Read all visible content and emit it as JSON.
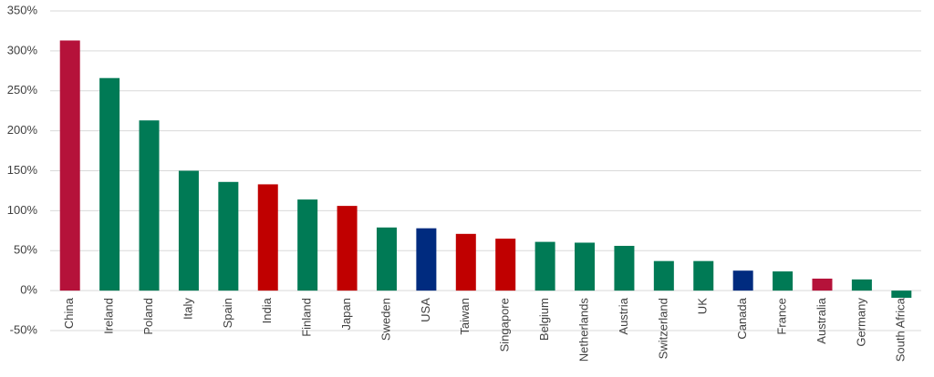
{
  "chart_data": {
    "type": "bar",
    "categories": [
      "China",
      "Ireland",
      "Poland",
      "Italy",
      "Spain",
      "India",
      "Finland",
      "Japan",
      "Sweden",
      "USA",
      "Taiwan",
      "Singapore",
      "Belgium",
      "Netherlands",
      "Austria",
      "Switzerland",
      "UK",
      "Canada",
      "France",
      "Australia",
      "Germany",
      "South Africa"
    ],
    "values": [
      313,
      266,
      213,
      150,
      136,
      133,
      114,
      106,
      79,
      78,
      71,
      65,
      61,
      60,
      56,
      37,
      37,
      25,
      24,
      15,
      14,
      -9
    ],
    "colors": [
      "#b5123a",
      "#007a55",
      "#007a55",
      "#007a55",
      "#007a55",
      "#c00000",
      "#007a55",
      "#c00000",
      "#007a55",
      "#002b7f",
      "#c00000",
      "#c00000",
      "#007a55",
      "#007a55",
      "#007a55",
      "#007a55",
      "#007a55",
      "#002b7f",
      "#007a55",
      "#b5123a",
      "#007a55",
      "#007a55"
    ],
    "ylim": [
      -50,
      350
    ],
    "yticks": [
      {
        "value": -50,
        "label": "-50%"
      },
      {
        "value": 0,
        "label": "0%"
      },
      {
        "value": 50,
        "label": "50%"
      },
      {
        "value": 100,
        "label": "100%"
      },
      {
        "value": 150,
        "label": "150%"
      },
      {
        "value": 200,
        "label": "200%"
      },
      {
        "value": 250,
        "label": "250%"
      },
      {
        "value": 300,
        "label": "300%"
      },
      {
        "value": 350,
        "label": "350%"
      }
    ],
    "grid": true
  }
}
